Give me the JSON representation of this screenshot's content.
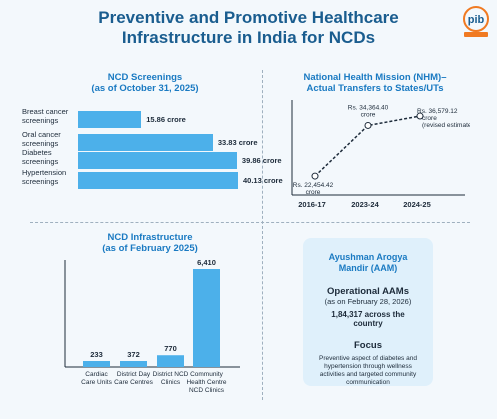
{
  "header": {
    "title_line1": "Preventive and Promotive Healthcare",
    "title_line2": "Infrastructure in India for NCDs",
    "logo_text": "pib"
  },
  "colors": {
    "bar": "#4cb0ea",
    "title": "#1a5d8f",
    "accent": "#1a7ac2"
  },
  "chart_data": [
    {
      "type": "bar",
      "orientation": "horizontal",
      "title": "NCD Screenings",
      "subtitle": "(as of October 31, 2025)",
      "categories": [
        "Breast cancer screenings",
        "Oral cancer screenings",
        "Diabetes screenings",
        "Hypertension screenings"
      ],
      "values": [
        15.86,
        33.83,
        39.86,
        40.13
      ],
      "value_labels": [
        "15.86 crore",
        "33.83 crore",
        "39.86 crore",
        "40.13 crore"
      ]
    },
    {
      "type": "line",
      "title": "National Health Mission (NHM)–",
      "subtitle": "Actual Transfers to States/UTs",
      "x": [
        "2016-17",
        "2023-24",
        "2024-25"
      ],
      "values": [
        22454.42,
        34364.4,
        36579.12
      ],
      "value_labels": [
        "Rs. 22,454.42 crore",
        "Rs. 34,364.40 crore",
        "Rs. 36,579.12 crore"
      ],
      "annotations": [
        "(revised estimate)"
      ]
    },
    {
      "type": "bar",
      "orientation": "vertical",
      "title": "NCD Infrastructure",
      "subtitle": "(as of February 2025)",
      "categories": [
        "Cardiac Care Units",
        "District Day Care Centres",
        "District NCD Clinics",
        "Community Health Centre NCD Clinics"
      ],
      "values": [
        233,
        372,
        770,
        6410
      ],
      "value_labels": [
        "233",
        "372",
        "770",
        "6,410"
      ]
    }
  ],
  "aam_box": {
    "title": "Ayushman Arogya Mandir (AAM)",
    "operational_label": "Operational AAMs",
    "as_of": "(as on February 28, 2026)",
    "count": "1,84,317 across the country",
    "focus_label": "Focus",
    "focus_text": "Preventive aspect of diabetes and hypertension through wellness activities and targeted community communication"
  }
}
